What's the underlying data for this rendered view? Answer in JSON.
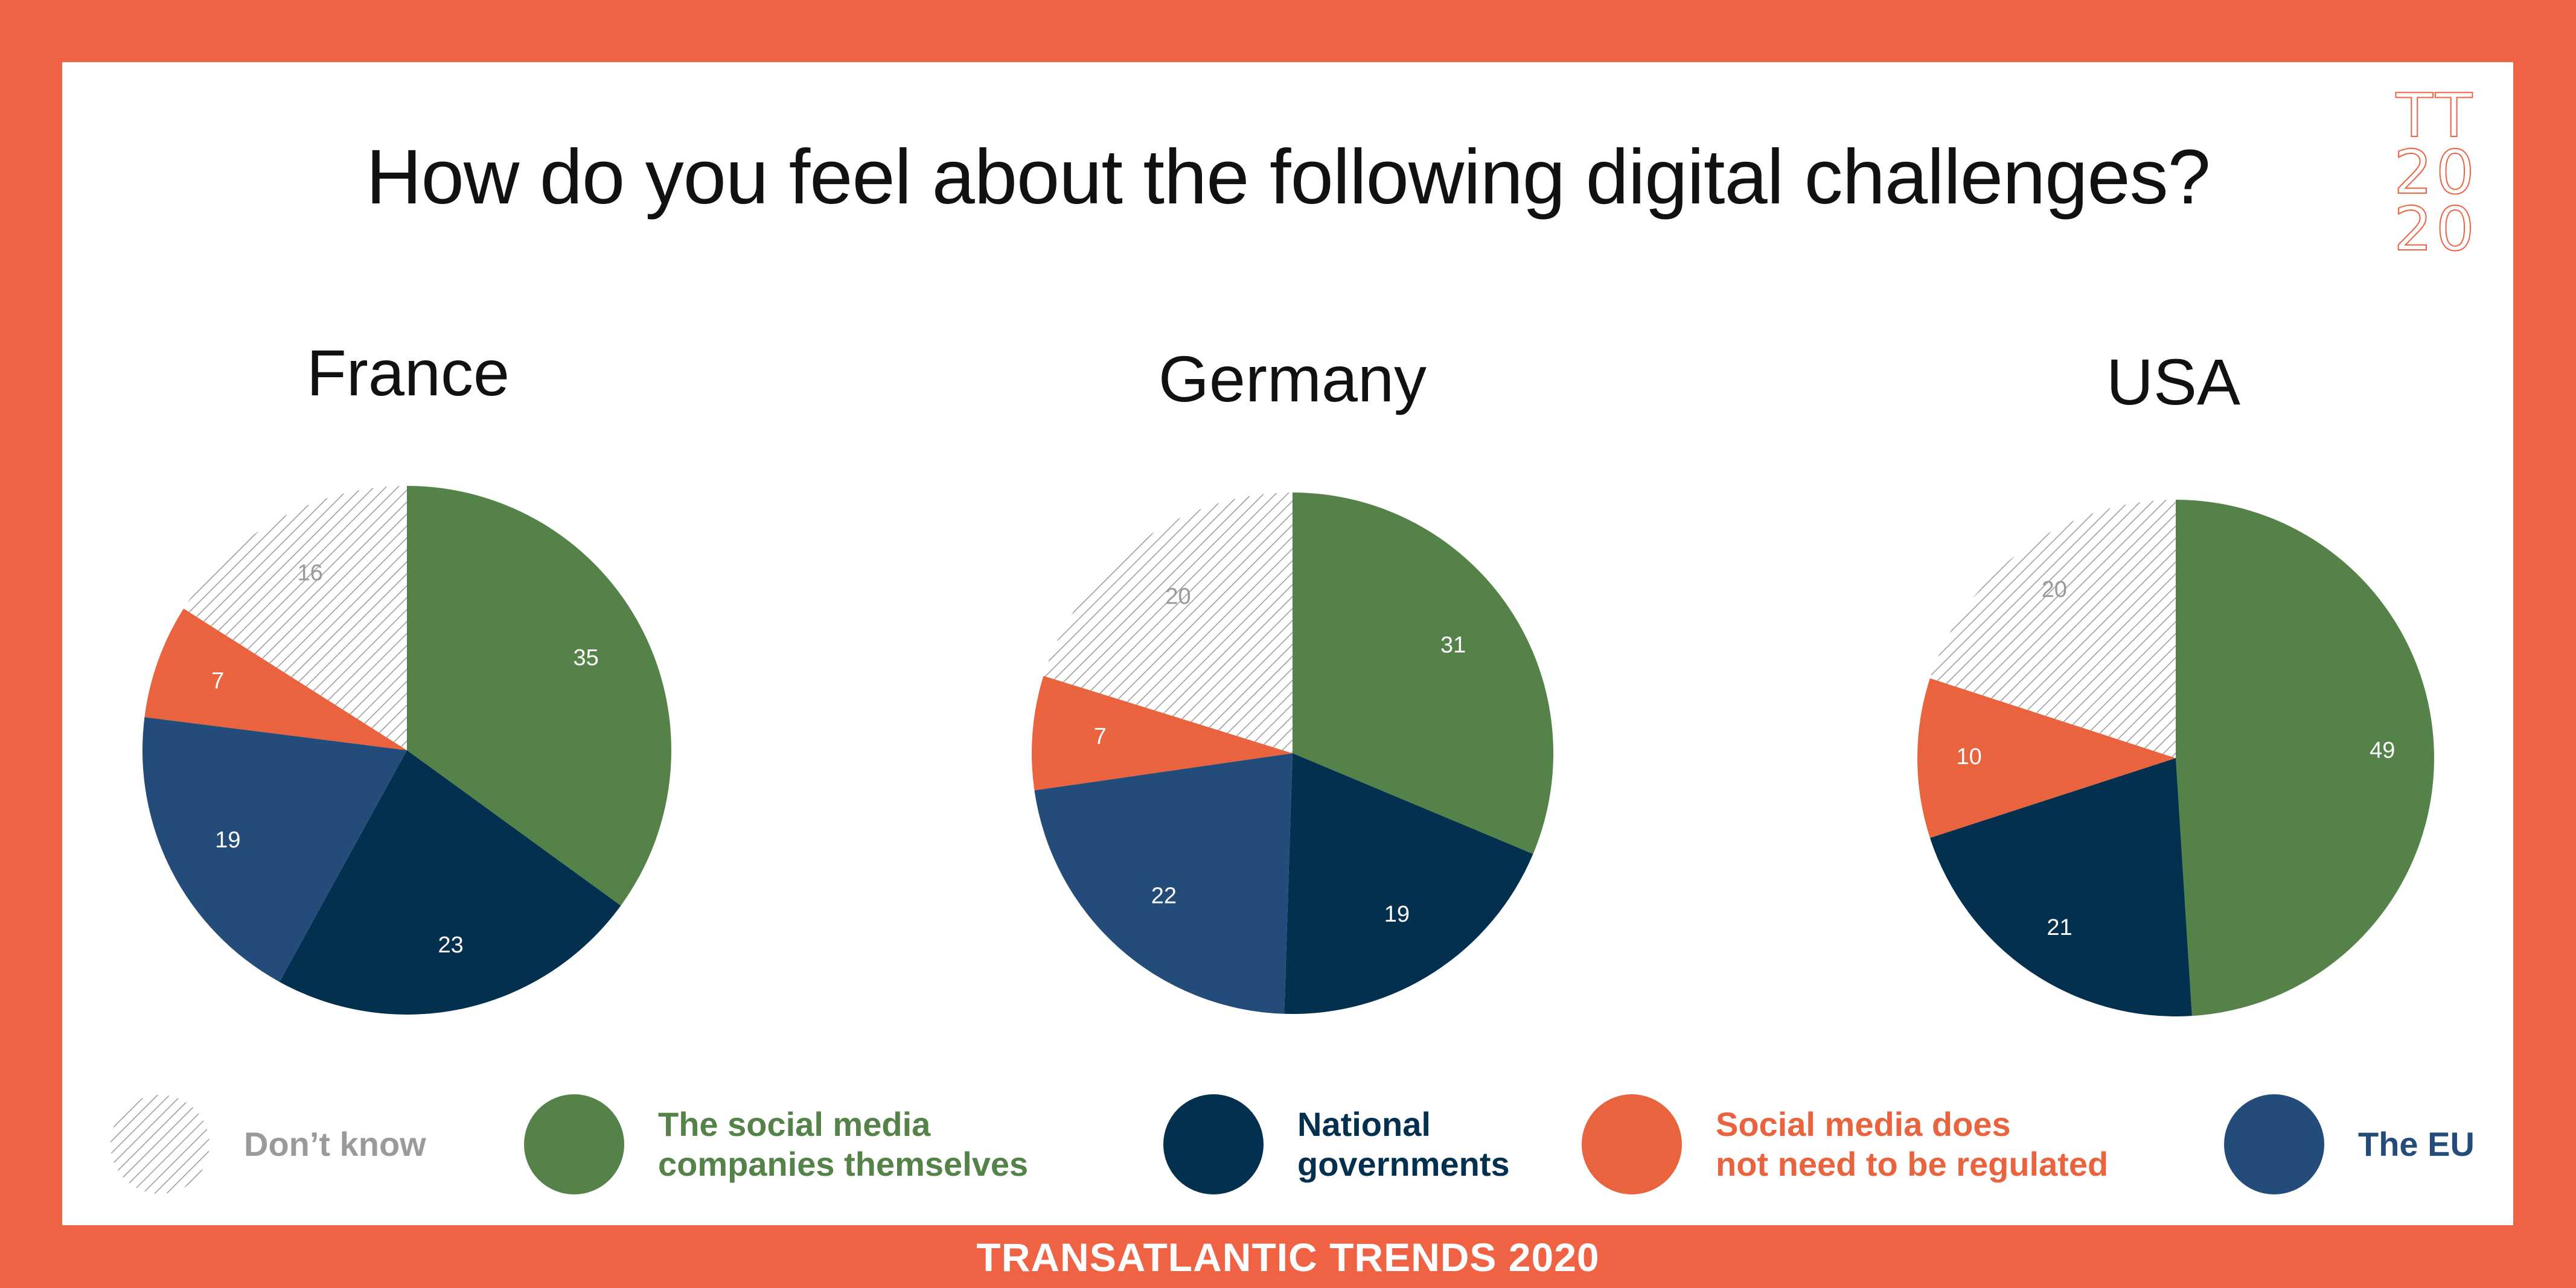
{
  "title": "How do you feel about the following digital challenges?",
  "logo_text": [
    "TT",
    "20",
    "20"
  ],
  "footer": "TRANSATLANTIC TRENDS 2020",
  "colors": {
    "frame": "#f06244",
    "dont_know": "#9a9a9a",
    "social_media_companies": "#548248",
    "national_governments": "#02304e",
    "not_regulated": "#e9633e",
    "eu": "#244c7a"
  },
  "legend": [
    {
      "key": "dont_know",
      "label": "Don’t know",
      "icon": "hatched-circle"
    },
    {
      "key": "social_media_companies",
      "label": "The social media\ncompanies themselves",
      "icon": "filled-circle"
    },
    {
      "key": "national_governments",
      "label": "National\ngovernments",
      "icon": "filled-circle"
    },
    {
      "key": "not_regulated",
      "label": "Social media does\nnot need to be regulated",
      "icon": "filled-circle"
    },
    {
      "key": "eu",
      "label": "The EU",
      "icon": "filled-circle"
    }
  ],
  "chart_data": [
    {
      "type": "pie",
      "title": "France",
      "slices": [
        {
          "label": "The social media companies themselves",
          "key": "social_media_companies",
          "value": 35
        },
        {
          "label": "National governments",
          "key": "national_governments",
          "value": 23
        },
        {
          "label": "The EU",
          "key": "eu",
          "value": 19
        },
        {
          "label": "Social media does not need to be regulated",
          "key": "not_regulated",
          "value": 7
        },
        {
          "label": "Don’t know",
          "key": "dont_know",
          "value": 16
        }
      ]
    },
    {
      "type": "pie",
      "title": "Germany",
      "slices": [
        {
          "label": "The social media companies themselves",
          "key": "social_media_companies",
          "value": 31
        },
        {
          "label": "National governments",
          "key": "national_governments",
          "value": 19
        },
        {
          "label": "The EU",
          "key": "eu",
          "value": 22
        },
        {
          "label": "Social media does not need to be regulated",
          "key": "not_regulated",
          "value": 7
        },
        {
          "label": "Don’t know",
          "key": "dont_know",
          "value": 20
        }
      ]
    },
    {
      "type": "pie",
      "title": "USA",
      "slices": [
        {
          "label": "The social media companies themselves",
          "key": "social_media_companies",
          "value": 49
        },
        {
          "label": "National governments",
          "key": "national_governments",
          "value": 21
        },
        {
          "label": "Social media does not need to be regulated",
          "key": "not_regulated",
          "value": 10
        },
        {
          "label": "Don’t know",
          "key": "dont_know",
          "value": 20
        }
      ]
    }
  ]
}
